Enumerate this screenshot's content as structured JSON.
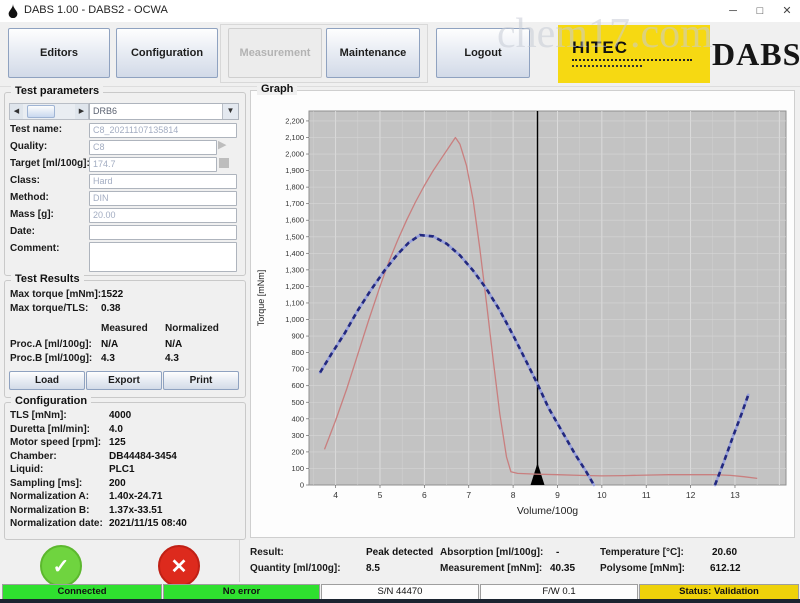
{
  "window": {
    "title": "DABS 1.00 - DABS2 - OCWA",
    "minimize": "─",
    "maximize": "□",
    "close": "✕"
  },
  "watermark": "chem17.com",
  "toolbar": {
    "editors": "Editors",
    "configuration": "Configuration",
    "measurement": "Measurement",
    "maintenance": "Maintenance",
    "logout": "Logout"
  },
  "logo": {
    "hitec": "HITEC",
    "dabs": "DABS"
  },
  "test_parameters": {
    "title": "Test parameters",
    "selector": "DRB6",
    "rows": [
      {
        "label": "Test name:",
        "value": "C8_20211107135814"
      },
      {
        "label": "Quality:",
        "value": "C8"
      },
      {
        "label": "Target [ml/100g]:",
        "value": "174.7"
      },
      {
        "label": "Class:",
        "value": "Hard"
      },
      {
        "label": "Method:",
        "value": "DIN"
      },
      {
        "label": "Mass [g]:",
        "value": "20.00"
      },
      {
        "label": "Date:",
        "value": ""
      },
      {
        "label": "Comment:",
        "value": ""
      }
    ]
  },
  "test_results": {
    "title": "Test Results",
    "max_torque_label": "Max torque [mNm]:",
    "max_torque_value": "1522",
    "max_torque_tls_label": "Max torque/TLS:",
    "max_torque_tls_value": "0.38",
    "col_measured": "Measured",
    "col_normalized": "Normalized",
    "proc_a_label": "Proc.A [ml/100g]:",
    "proc_a_measured": "N/A",
    "proc_a_normalized": "N/A",
    "proc_b_label": "Proc.B [ml/100g]:",
    "proc_b_measured": "4.3",
    "proc_b_normalized": "4.3",
    "buttons": {
      "load": "Load",
      "export": "Export",
      "print": "Print"
    }
  },
  "configuration": {
    "title": "Configuration",
    "rows": [
      {
        "label": "TLS [mNm]:",
        "value": "4000"
      },
      {
        "label": "Duretta [ml/min]:",
        "value": "4.0"
      },
      {
        "label": "Motor speed [rpm]:",
        "value": "125"
      },
      {
        "label": "Chamber:",
        "value": "DB44484-3454"
      },
      {
        "label": "Liquid:",
        "value": "PLC1"
      },
      {
        "label": "Sampling [ms]:",
        "value": "200"
      },
      {
        "label": "Normalization A:",
        "value": "1.40x-24.71"
      },
      {
        "label": "Normalization B:",
        "value": "1.37x-33.51"
      },
      {
        "label": "Normalization date:",
        "value": "2021/11/15 08:40"
      }
    ]
  },
  "graph": {
    "title": "Graph"
  },
  "chart_data": {
    "type": "line",
    "xlabel": "Volume/100g",
    "ylabel": "Torque [mNm]",
    "xlim": [
      3.4,
      14.15
    ],
    "ylim": [
      0,
      2260
    ],
    "x_ticks": [
      4,
      5,
      6,
      7,
      8,
      9,
      10,
      11,
      12,
      13
    ],
    "y_tick_step": 100,
    "y_max_tick": 2200,
    "grid": true,
    "plot_bg": "#c3c3c3",
    "marker_x": 8.55,
    "series": [
      {
        "name": "measured-torque",
        "color": "#c97f7f",
        "width": 1.3,
        "x": [
          3.75,
          4.0,
          4.25,
          4.5,
          4.75,
          5.0,
          5.2,
          5.4,
          5.6,
          5.8,
          6.0,
          6.2,
          6.4,
          6.55,
          6.7,
          6.8,
          6.95,
          7.1,
          7.25,
          7.4,
          7.55,
          7.7,
          7.85,
          7.95,
          8.1,
          8.5,
          9.0,
          9.5,
          10.0,
          10.5,
          11.0,
          11.5,
          12.0,
          12.5,
          12.9,
          13.2,
          13.5
        ],
        "y": [
          215,
          390,
          580,
          790,
          1000,
          1200,
          1350,
          1480,
          1600,
          1710,
          1810,
          1900,
          1980,
          2040,
          2100,
          2060,
          1930,
          1720,
          1430,
          1100,
          760,
          430,
          170,
          80,
          70,
          66,
          62,
          58,
          55,
          57,
          60,
          62,
          62,
          63,
          58,
          50,
          40
        ]
      },
      {
        "name": "normalized-fit-1",
        "base_color": "#98a1dc",
        "dash_color": "#23297f",
        "width": 2.6,
        "x": [
          3.65,
          3.9,
          4.2,
          4.5,
          4.8,
          5.1,
          5.4,
          5.65,
          5.9,
          6.2,
          6.5,
          6.8,
          7.1,
          7.4,
          7.7,
          8.0,
          8.3,
          8.55,
          8.8,
          9.1,
          9.4,
          9.65,
          9.82
        ],
        "y": [
          680,
          790,
          915,
          1055,
          1180,
          1295,
          1395,
          1465,
          1510,
          1502,
          1458,
          1388,
          1295,
          1185,
          1055,
          905,
          745,
          610,
          465,
          325,
          185,
          80,
          0
        ]
      },
      {
        "name": "normalized-fit-2",
        "base_color": "#98a1dc",
        "dash_color": "#23297f",
        "width": 2.6,
        "x": [
          12.55,
          12.75,
          12.95,
          13.15,
          13.3
        ],
        "y": [
          0,
          140,
          290,
          430,
          545
        ]
      }
    ]
  },
  "results_panel": {
    "result_label": "Result:",
    "result_value": "Peak detected",
    "quantity_label": "Quantity [ml/100g]:",
    "quantity_value": "8.5",
    "absorption_label": "Absorption [ml/100g]:",
    "absorption_value": "-",
    "measurement_label": "Measurement [mNm]:",
    "measurement_value": "40.35",
    "temperature_label": "Temperature [°C]:",
    "temperature_value": "20.60",
    "polysome_label": "Polysome [mNm]:",
    "polysome_value": "612.12"
  },
  "action_buttons": {
    "confirm": "✓",
    "cancel": "✕"
  },
  "status_bar": {
    "connected": "Connected",
    "no_error": "No error",
    "serial": "S/N 44470",
    "firmware": "F/W 0.1",
    "status": "Status: Validation"
  },
  "colors": {
    "status_green": "#2fe02f",
    "status_yellow": "#eed20a",
    "curve_red": "#c97f7f",
    "curve_blue_dash": "#23297f",
    "hitec_yellow": "#f6d912",
    "plot_bg": "#c3c3c3"
  }
}
